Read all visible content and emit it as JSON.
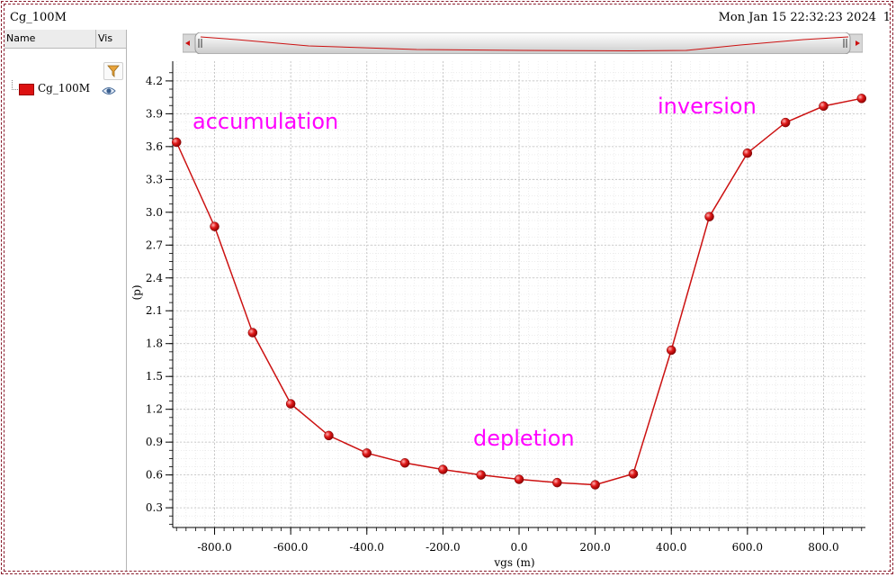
{
  "window": {
    "title": "Cg_100M",
    "timestamp": "Mon Jan 15 22:32:23 2024",
    "extra": "1"
  },
  "panel": {
    "col_name": "Name",
    "col_vis": "Vis",
    "items": [
      {
        "label": "Cg_100M",
        "color": "#dd1111"
      }
    ]
  },
  "chart_data": {
    "type": "line",
    "xlabel": "vgs (m)",
    "ylabel": "(p)",
    "xlim": [
      -910,
      910
    ],
    "ylim": [
      0.12,
      4.38
    ],
    "x_ticks": [
      -800,
      -600,
      -400,
      -200,
      0,
      200,
      400,
      600,
      800
    ],
    "x_tick_labels": [
      "-800.0",
      "-600.0",
      "-400.0",
      "-200.0",
      "0.0",
      "200.0",
      "400.0",
      "600.0",
      "800.0"
    ],
    "y_ticks": [
      0.3,
      0.6,
      0.9,
      1.2,
      1.5,
      1.8,
      2.1,
      2.4,
      2.7,
      3.0,
      3.3,
      3.6,
      3.9,
      4.2
    ],
    "y_tick_labels": [
      "0.3",
      "0.6",
      "0.9",
      "1.2",
      "1.5",
      "1.8",
      "2.1",
      "2.4",
      "2.7",
      "3.0",
      "3.3",
      "3.6",
      "3.9",
      "4.2"
    ],
    "grid": true,
    "series": [
      {
        "name": "Cg_100M",
        "color": "#cc1111",
        "x": [
          -900,
          -800,
          -700,
          -600,
          -500,
          -400,
          -300,
          -200,
          -100,
          0,
          100,
          200,
          300,
          400,
          500,
          600,
          700,
          800,
          900
        ],
        "y": [
          3.64,
          2.87,
          1.9,
          1.25,
          0.96,
          0.8,
          0.71,
          0.65,
          0.6,
          0.56,
          0.53,
          0.51,
          0.61,
          1.74,
          2.96,
          3.54,
          3.82,
          3.97,
          4.04
        ]
      }
    ],
    "annotations": [
      {
        "text": "accumulation",
        "color": "#ff00ff"
      },
      {
        "text": "depletion",
        "color": "#ff00ff"
      },
      {
        "text": "inversion",
        "color": "#ff00ff"
      }
    ]
  }
}
